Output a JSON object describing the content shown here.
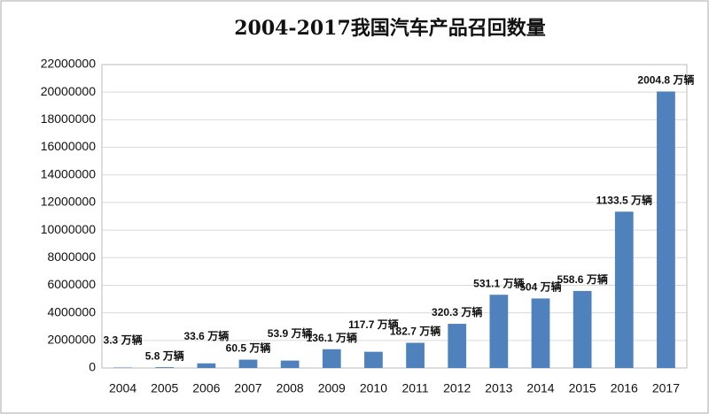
{
  "chart_data": {
    "type": "bar",
    "title": "2004-2017我国汽车产品召回数量",
    "categories": [
      "2004",
      "2005",
      "2006",
      "2007",
      "2008",
      "2009",
      "2010",
      "2011",
      "2012",
      "2013",
      "2014",
      "2015",
      "2016",
      "2017"
    ],
    "values": [
      33000,
      58000,
      336000,
      605000,
      539000,
      1361000,
      1177000,
      1827000,
      3203000,
      5311000,
      5040000,
      5586000,
      11335000,
      20048000
    ],
    "value_labels": [
      "3.3 万辆",
      "5.8 万辆",
      "33.6 万辆",
      "60.5 万辆",
      "53.9 万辆",
      "136.1 万辆",
      "117.7 万辆",
      "182.7 万辆",
      "320.3 万辆",
      "531.1 万辆",
      "504 万辆",
      "558.6 万辆",
      "1133.5 万辆",
      "2004.8 万辆"
    ],
    "color": "#4f81bd",
    "ylim": [
      0,
      22000000
    ],
    "yticks": [
      0,
      2000000,
      4000000,
      6000000,
      8000000,
      10000000,
      12000000,
      14000000,
      16000000,
      18000000,
      20000000,
      22000000
    ],
    "grid": true
  }
}
